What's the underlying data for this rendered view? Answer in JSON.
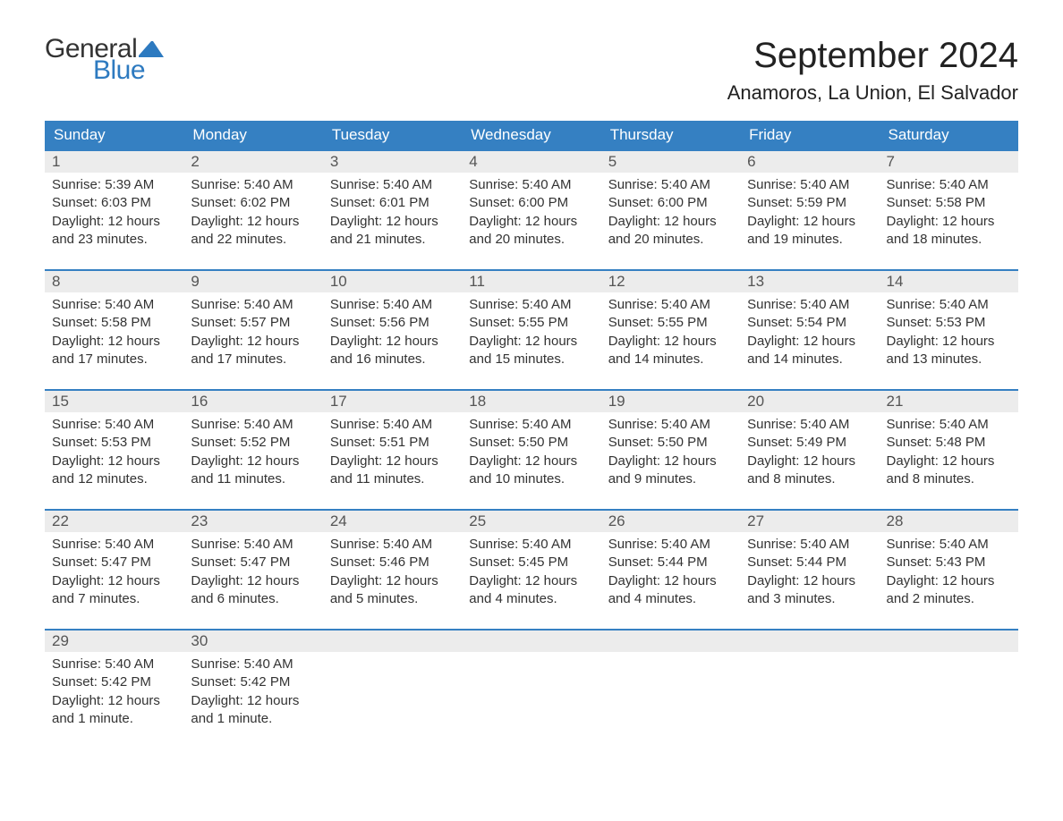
{
  "logo": {
    "text_top": "General",
    "text_bottom": "Blue",
    "top_color": "#333333",
    "bottom_color": "#2d7ac0",
    "flag_color": "#2d7ac0"
  },
  "header": {
    "title": "September 2024",
    "location": "Anamoros, La Union, El Salvador",
    "title_fontsize": 40,
    "location_fontsize": 22
  },
  "calendar": {
    "header_bg": "#3580c2",
    "header_text_color": "#ffffff",
    "row_border_color": "#3580c2",
    "daynum_bg": "#ececec",
    "daynum_color": "#555555",
    "body_text_color": "#333333",
    "background_color": "#ffffff",
    "columns": [
      "Sunday",
      "Monday",
      "Tuesday",
      "Wednesday",
      "Thursday",
      "Friday",
      "Saturday"
    ],
    "weeks": [
      [
        {
          "day": "1",
          "sunrise": "Sunrise: 5:39 AM",
          "sunset": "Sunset: 6:03 PM",
          "daylight1": "Daylight: 12 hours",
          "daylight2": "and 23 minutes."
        },
        {
          "day": "2",
          "sunrise": "Sunrise: 5:40 AM",
          "sunset": "Sunset: 6:02 PM",
          "daylight1": "Daylight: 12 hours",
          "daylight2": "and 22 minutes."
        },
        {
          "day": "3",
          "sunrise": "Sunrise: 5:40 AM",
          "sunset": "Sunset: 6:01 PM",
          "daylight1": "Daylight: 12 hours",
          "daylight2": "and 21 minutes."
        },
        {
          "day": "4",
          "sunrise": "Sunrise: 5:40 AM",
          "sunset": "Sunset: 6:00 PM",
          "daylight1": "Daylight: 12 hours",
          "daylight2": "and 20 minutes."
        },
        {
          "day": "5",
          "sunrise": "Sunrise: 5:40 AM",
          "sunset": "Sunset: 6:00 PM",
          "daylight1": "Daylight: 12 hours",
          "daylight2": "and 20 minutes."
        },
        {
          "day": "6",
          "sunrise": "Sunrise: 5:40 AM",
          "sunset": "Sunset: 5:59 PM",
          "daylight1": "Daylight: 12 hours",
          "daylight2": "and 19 minutes."
        },
        {
          "day": "7",
          "sunrise": "Sunrise: 5:40 AM",
          "sunset": "Sunset: 5:58 PM",
          "daylight1": "Daylight: 12 hours",
          "daylight2": "and 18 minutes."
        }
      ],
      [
        {
          "day": "8",
          "sunrise": "Sunrise: 5:40 AM",
          "sunset": "Sunset: 5:58 PM",
          "daylight1": "Daylight: 12 hours",
          "daylight2": "and 17 minutes."
        },
        {
          "day": "9",
          "sunrise": "Sunrise: 5:40 AM",
          "sunset": "Sunset: 5:57 PM",
          "daylight1": "Daylight: 12 hours",
          "daylight2": "and 17 minutes."
        },
        {
          "day": "10",
          "sunrise": "Sunrise: 5:40 AM",
          "sunset": "Sunset: 5:56 PM",
          "daylight1": "Daylight: 12 hours",
          "daylight2": "and 16 minutes."
        },
        {
          "day": "11",
          "sunrise": "Sunrise: 5:40 AM",
          "sunset": "Sunset: 5:55 PM",
          "daylight1": "Daylight: 12 hours",
          "daylight2": "and 15 minutes."
        },
        {
          "day": "12",
          "sunrise": "Sunrise: 5:40 AM",
          "sunset": "Sunset: 5:55 PM",
          "daylight1": "Daylight: 12 hours",
          "daylight2": "and 14 minutes."
        },
        {
          "day": "13",
          "sunrise": "Sunrise: 5:40 AM",
          "sunset": "Sunset: 5:54 PM",
          "daylight1": "Daylight: 12 hours",
          "daylight2": "and 14 minutes."
        },
        {
          "day": "14",
          "sunrise": "Sunrise: 5:40 AM",
          "sunset": "Sunset: 5:53 PM",
          "daylight1": "Daylight: 12 hours",
          "daylight2": "and 13 minutes."
        }
      ],
      [
        {
          "day": "15",
          "sunrise": "Sunrise: 5:40 AM",
          "sunset": "Sunset: 5:53 PM",
          "daylight1": "Daylight: 12 hours",
          "daylight2": "and 12 minutes."
        },
        {
          "day": "16",
          "sunrise": "Sunrise: 5:40 AM",
          "sunset": "Sunset: 5:52 PM",
          "daylight1": "Daylight: 12 hours",
          "daylight2": "and 11 minutes."
        },
        {
          "day": "17",
          "sunrise": "Sunrise: 5:40 AM",
          "sunset": "Sunset: 5:51 PM",
          "daylight1": "Daylight: 12 hours",
          "daylight2": "and 11 minutes."
        },
        {
          "day": "18",
          "sunrise": "Sunrise: 5:40 AM",
          "sunset": "Sunset: 5:50 PM",
          "daylight1": "Daylight: 12 hours",
          "daylight2": "and 10 minutes."
        },
        {
          "day": "19",
          "sunrise": "Sunrise: 5:40 AM",
          "sunset": "Sunset: 5:50 PM",
          "daylight1": "Daylight: 12 hours",
          "daylight2": "and 9 minutes."
        },
        {
          "day": "20",
          "sunrise": "Sunrise: 5:40 AM",
          "sunset": "Sunset: 5:49 PM",
          "daylight1": "Daylight: 12 hours",
          "daylight2": "and 8 minutes."
        },
        {
          "day": "21",
          "sunrise": "Sunrise: 5:40 AM",
          "sunset": "Sunset: 5:48 PM",
          "daylight1": "Daylight: 12 hours",
          "daylight2": "and 8 minutes."
        }
      ],
      [
        {
          "day": "22",
          "sunrise": "Sunrise: 5:40 AM",
          "sunset": "Sunset: 5:47 PM",
          "daylight1": "Daylight: 12 hours",
          "daylight2": "and 7 minutes."
        },
        {
          "day": "23",
          "sunrise": "Sunrise: 5:40 AM",
          "sunset": "Sunset: 5:47 PM",
          "daylight1": "Daylight: 12 hours",
          "daylight2": "and 6 minutes."
        },
        {
          "day": "24",
          "sunrise": "Sunrise: 5:40 AM",
          "sunset": "Sunset: 5:46 PM",
          "daylight1": "Daylight: 12 hours",
          "daylight2": "and 5 minutes."
        },
        {
          "day": "25",
          "sunrise": "Sunrise: 5:40 AM",
          "sunset": "Sunset: 5:45 PM",
          "daylight1": "Daylight: 12 hours",
          "daylight2": "and 4 minutes."
        },
        {
          "day": "26",
          "sunrise": "Sunrise: 5:40 AM",
          "sunset": "Sunset: 5:44 PM",
          "daylight1": "Daylight: 12 hours",
          "daylight2": "and 4 minutes."
        },
        {
          "day": "27",
          "sunrise": "Sunrise: 5:40 AM",
          "sunset": "Sunset: 5:44 PM",
          "daylight1": "Daylight: 12 hours",
          "daylight2": "and 3 minutes."
        },
        {
          "day": "28",
          "sunrise": "Sunrise: 5:40 AM",
          "sunset": "Sunset: 5:43 PM",
          "daylight1": "Daylight: 12 hours",
          "daylight2": "and 2 minutes."
        }
      ],
      [
        {
          "day": "29",
          "sunrise": "Sunrise: 5:40 AM",
          "sunset": "Sunset: 5:42 PM",
          "daylight1": "Daylight: 12 hours",
          "daylight2": "and 1 minute."
        },
        {
          "day": "30",
          "sunrise": "Sunrise: 5:40 AM",
          "sunset": "Sunset: 5:42 PM",
          "daylight1": "Daylight: 12 hours",
          "daylight2": "and 1 minute."
        },
        {
          "day": "",
          "sunrise": "",
          "sunset": "",
          "daylight1": "",
          "daylight2": ""
        },
        {
          "day": "",
          "sunrise": "",
          "sunset": "",
          "daylight1": "",
          "daylight2": ""
        },
        {
          "day": "",
          "sunrise": "",
          "sunset": "",
          "daylight1": "",
          "daylight2": ""
        },
        {
          "day": "",
          "sunrise": "",
          "sunset": "",
          "daylight1": "",
          "daylight2": ""
        },
        {
          "day": "",
          "sunrise": "",
          "sunset": "",
          "daylight1": "",
          "daylight2": ""
        }
      ]
    ]
  }
}
